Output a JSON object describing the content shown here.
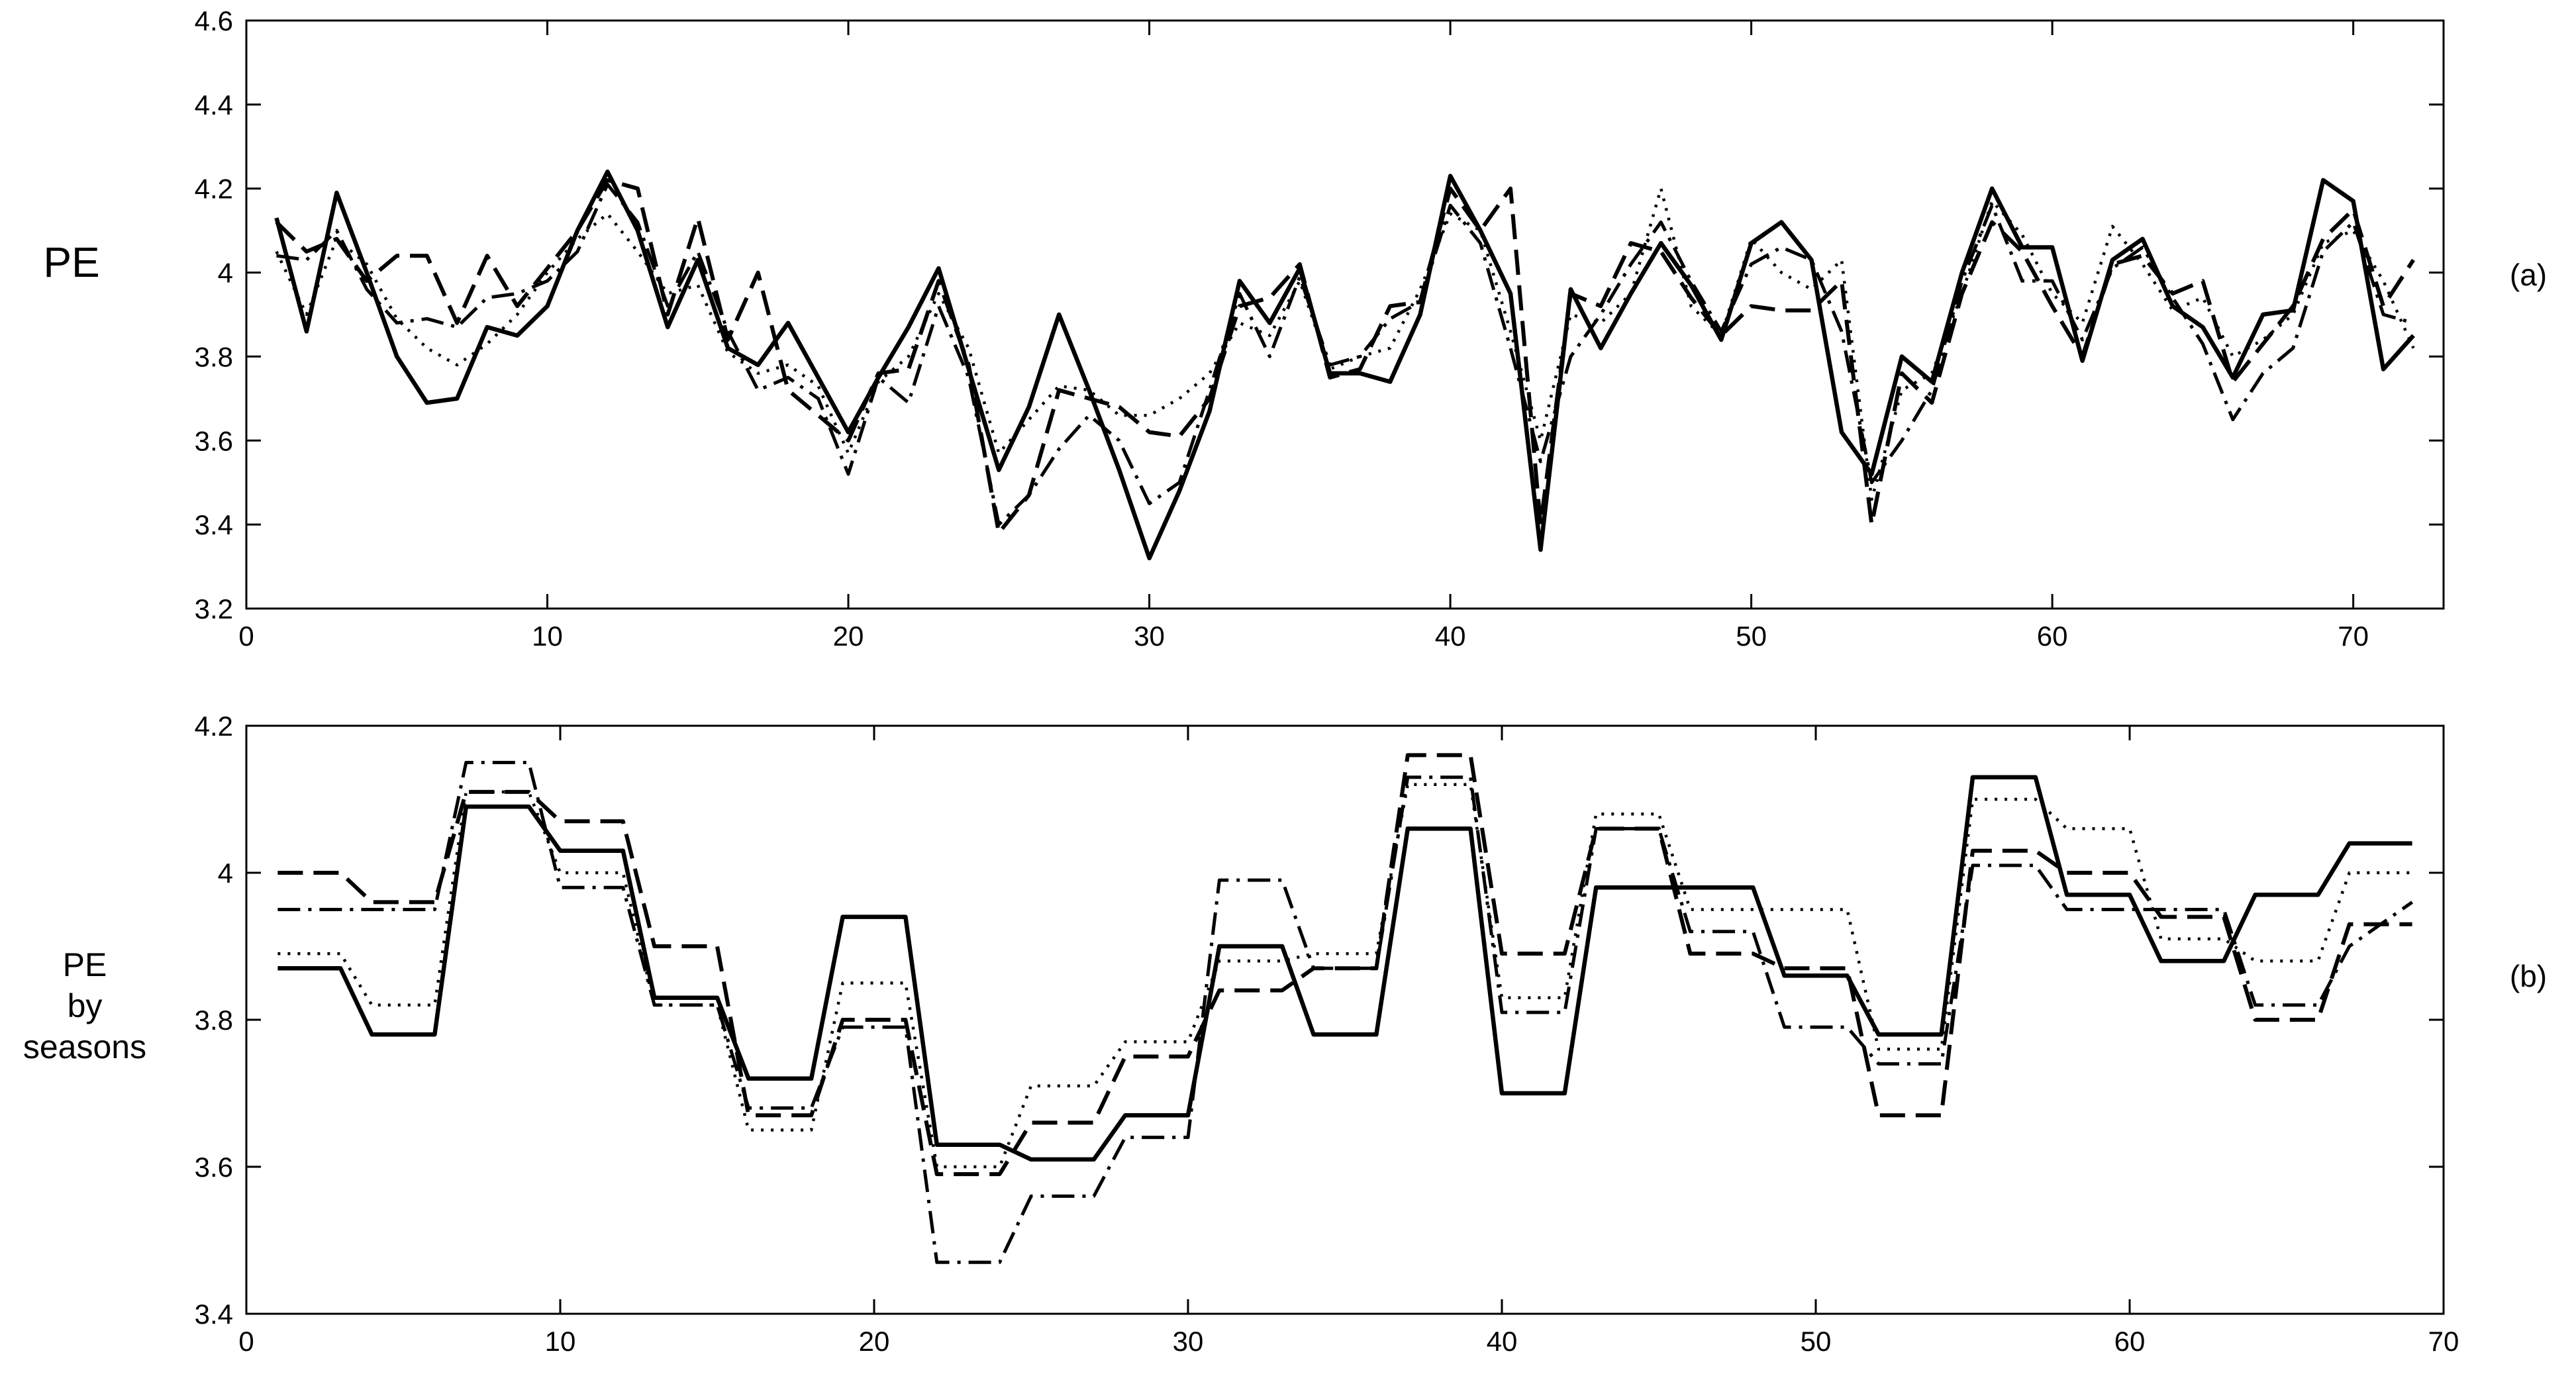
{
  "chart_data": [
    {
      "type": "line",
      "title": "",
      "xlabel": "",
      "ylabel": "PE",
      "panel_label": "(a)",
      "xlim": [
        0,
        73
      ],
      "ylim": [
        3.2,
        4.6
      ],
      "xticks": [
        0,
        10,
        20,
        30,
        40,
        50,
        60,
        70
      ],
      "yticks": [
        3.2,
        3.4,
        3.6,
        3.8,
        4.0,
        4.2,
        4.4,
        4.6
      ],
      "ytick_labels": [
        "3.2",
        "3.4",
        "3.6",
        "3.8",
        "4",
        "4.2",
        "4.4",
        "4.6"
      ],
      "grid": false,
      "legend": "none",
      "x": [
        1,
        2,
        3,
        4,
        5,
        6,
        7,
        8,
        9,
        10,
        11,
        12,
        13,
        14,
        15,
        16,
        17,
        18,
        19,
        20,
        21,
        22,
        23,
        24,
        25,
        26,
        27,
        28,
        29,
        30,
        31,
        32,
        33,
        34,
        35,
        36,
        37,
        38,
        39,
        40,
        41,
        42,
        43,
        44,
        45,
        46,
        47,
        48,
        49,
        50,
        51,
        52,
        53,
        54,
        55,
        56,
        57,
        58,
        59,
        60,
        61,
        62,
        63,
        64,
        65,
        66,
        67,
        68,
        69,
        70,
        71,
        72
      ],
      "series": [
        {
          "style": "solid",
          "values": [
            4.13,
            3.86,
            4.19,
            4.0,
            3.8,
            3.69,
            3.7,
            3.87,
            3.85,
            3.92,
            4.1,
            4.24,
            4.1,
            3.87,
            4.03,
            3.82,
            3.78,
            3.88,
            3.75,
            3.62,
            3.75,
            3.87,
            4.01,
            3.77,
            3.53,
            3.68,
            3.9,
            3.72,
            3.53,
            3.32,
            3.48,
            3.67,
            3.98,
            3.88,
            4.01,
            3.76,
            3.76,
            3.74,
            3.9,
            4.23,
            4.1,
            3.95,
            3.34,
            3.96,
            3.82,
            3.95,
            4.07,
            3.97,
            3.84,
            4.07,
            4.12,
            4.03,
            3.62,
            3.52,
            3.8,
            3.74,
            4.0,
            4.2,
            4.06,
            4.06,
            3.79,
            4.03,
            4.08,
            3.92,
            3.87,
            3.75,
            3.9,
            3.91,
            4.22,
            4.17,
            3.77,
            3.85
          ]
        },
        {
          "style": "dashed",
          "values": [
            4.12,
            4.05,
            4.08,
            3.98,
            4.04,
            4.04,
            3.88,
            4.04,
            3.92,
            4.01,
            4.1,
            4.22,
            4.2,
            3.9,
            4.13,
            3.84,
            4.0,
            3.72,
            3.66,
            3.6,
            3.76,
            3.77,
            3.98,
            3.78,
            3.38,
            3.47,
            3.72,
            3.7,
            3.68,
            3.62,
            3.61,
            3.7,
            3.92,
            3.94,
            4.02,
            3.75,
            3.77,
            3.92,
            3.93,
            4.2,
            4.1,
            4.2,
            3.4,
            3.95,
            3.92,
            4.07,
            4.05,
            3.94,
            3.85,
            3.92,
            3.91,
            3.91,
            3.98,
            3.4,
            3.76,
            3.69,
            3.95,
            4.12,
            4.05,
            3.92,
            3.8,
            4.02,
            4.04,
            3.95,
            3.98,
            3.74,
            3.83,
            3.92,
            4.08,
            4.15,
            3.92,
            4.03
          ]
        },
        {
          "style": "dotted",
          "values": [
            4.05,
            3.9,
            4.08,
            4.02,
            3.89,
            3.82,
            3.78,
            3.83,
            3.9,
            4.0,
            4.08,
            4.14,
            4.05,
            3.95,
            3.97,
            3.81,
            3.76,
            3.78,
            3.73,
            3.57,
            3.74,
            3.8,
            3.95,
            3.82,
            3.57,
            3.65,
            3.73,
            3.72,
            3.66,
            3.66,
            3.7,
            3.76,
            3.88,
            3.85,
            3.98,
            3.77,
            3.8,
            3.82,
            3.96,
            4.14,
            4.1,
            3.86,
            3.6,
            3.9,
            3.88,
            3.95,
            4.2,
            3.92,
            3.85,
            4.08,
            4.0,
            3.96,
            4.03,
            3.46,
            3.72,
            3.76,
            3.95,
            4.17,
            4.09,
            3.95,
            3.88,
            4.11,
            4.02,
            3.91,
            3.94,
            3.8,
            3.84,
            3.9,
            4.07,
            4.1,
            3.98,
            3.82
          ]
        },
        {
          "style": "dashdot",
          "values": [
            4.04,
            4.03,
            4.1,
            3.96,
            3.88,
            3.89,
            3.87,
            3.94,
            3.95,
            3.98,
            4.05,
            4.21,
            4.12,
            3.92,
            4.05,
            3.86,
            3.72,
            3.75,
            3.7,
            3.52,
            3.75,
            3.69,
            3.92,
            3.75,
            3.4,
            3.47,
            3.58,
            3.66,
            3.6,
            3.45,
            3.5,
            3.72,
            3.95,
            3.8,
            3.99,
            3.78,
            3.8,
            3.89,
            3.93,
            4.16,
            4.07,
            3.82,
            3.55,
            3.8,
            3.9,
            4.02,
            4.12,
            3.98,
            3.86,
            4.02,
            4.06,
            4.03,
            3.86,
            3.5,
            3.6,
            3.72,
            3.98,
            4.16,
            3.98,
            3.98,
            3.84,
            4.01,
            4.06,
            3.94,
            3.83,
            3.65,
            3.76,
            3.82,
            4.05,
            4.12,
            3.9,
            3.88
          ]
        }
      ]
    },
    {
      "type": "line",
      "title": "",
      "xlabel": "",
      "ylabel": [
        "PE",
        "by",
        "seasons"
      ],
      "panel_label": "(b)",
      "xlim": [
        0,
        70
      ],
      "ylim": [
        3.4,
        4.2
      ],
      "xticks": [
        0,
        10,
        20,
        30,
        40,
        50,
        60,
        70
      ],
      "yticks": [
        3.4,
        3.6,
        3.8,
        4.0,
        4.2
      ],
      "ytick_labels": [
        "3.4",
        "3.6",
        "3.8",
        "4",
        "4.2"
      ],
      "grid": false,
      "legend": "none",
      "x": [
        1,
        3,
        4,
        6,
        7,
        9,
        10,
        12,
        13,
        15,
        16,
        18,
        19,
        21,
        22,
        24,
        25,
        27,
        28,
        30,
        31,
        33,
        34,
        36,
        37,
        39,
        40,
        42,
        43,
        45,
        46,
        48,
        49,
        51,
        52,
        54,
        55,
        57,
        58,
        60,
        61,
        63,
        64,
        66,
        67,
        69
      ],
      "series": [
        {
          "style": "solid",
          "values": [
            3.87,
            3.87,
            3.78,
            3.78,
            4.09,
            4.09,
            4.03,
            4.03,
            3.83,
            3.83,
            3.72,
            3.72,
            3.94,
            3.94,
            3.63,
            3.63,
            3.61,
            3.61,
            3.67,
            3.67,
            3.9,
            3.9,
            3.78,
            3.78,
            4.06,
            4.06,
            3.7,
            3.7,
            3.98,
            3.98,
            3.98,
            3.98,
            3.86,
            3.86,
            3.78,
            3.78,
            4.13,
            4.13,
            3.97,
            3.97,
            3.88,
            3.88,
            3.97,
            3.97,
            4.04,
            4.04
          ]
        },
        {
          "style": "dashed",
          "values": [
            4.0,
            4.0,
            3.96,
            3.96,
            4.11,
            4.11,
            4.07,
            4.07,
            3.9,
            3.9,
            3.67,
            3.67,
            3.8,
            3.8,
            3.59,
            3.59,
            3.66,
            3.66,
            3.75,
            3.75,
            3.84,
            3.84,
            3.87,
            3.87,
            4.16,
            4.16,
            3.89,
            3.89,
            4.06,
            4.06,
            3.89,
            3.89,
            3.87,
            3.87,
            3.67,
            3.67,
            4.03,
            4.03,
            4.0,
            4.0,
            3.94,
            3.94,
            3.8,
            3.8,
            3.93,
            3.93
          ]
        },
        {
          "style": "dotted",
          "values": [
            3.89,
            3.89,
            3.82,
            3.82,
            4.11,
            4.11,
            4.0,
            4.0,
            3.82,
            3.82,
            3.65,
            3.65,
            3.85,
            3.85,
            3.6,
            3.6,
            3.71,
            3.71,
            3.77,
            3.77,
            3.88,
            3.88,
            3.89,
            3.89,
            4.12,
            4.12,
            3.83,
            3.83,
            4.08,
            4.08,
            3.95,
            3.95,
            3.95,
            3.95,
            3.76,
            3.76,
            4.1,
            4.1,
            4.06,
            4.06,
            3.91,
            3.91,
            3.88,
            3.88,
            4.0,
            4.0
          ]
        },
        {
          "style": "dashdot",
          "values": [
            3.95,
            3.95,
            3.95,
            3.95,
            4.15,
            4.15,
            3.98,
            3.98,
            3.82,
            3.82,
            3.68,
            3.68,
            3.79,
            3.79,
            3.47,
            3.47,
            3.56,
            3.56,
            3.64,
            3.64,
            3.99,
            3.99,
            3.87,
            3.87,
            4.13,
            4.13,
            3.81,
            3.81,
            4.06,
            4.06,
            3.92,
            3.92,
            3.79,
            3.79,
            3.74,
            3.74,
            4.01,
            4.01,
            3.95,
            3.95,
            3.95,
            3.95,
            3.82,
            3.82,
            3.9,
            3.96
          ]
        }
      ]
    }
  ]
}
